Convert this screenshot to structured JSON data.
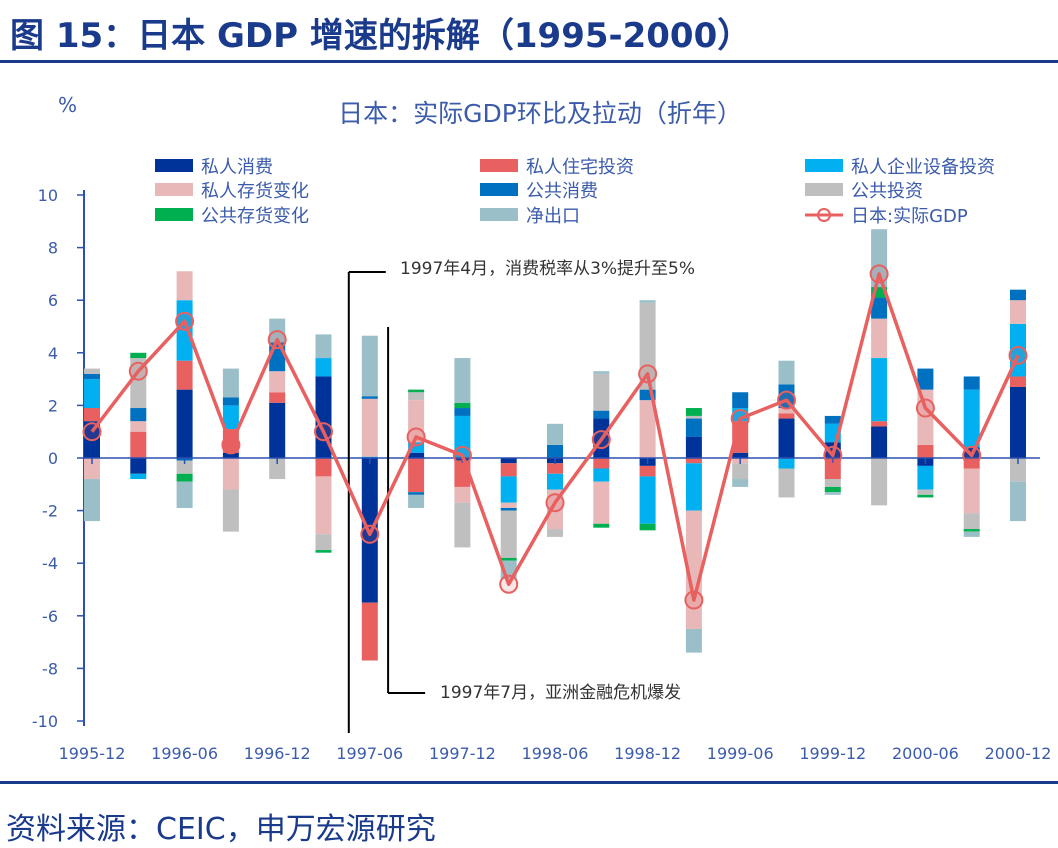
{
  "header": {
    "title": "图 15：日本 GDP 增速的拆解（1995-2000）"
  },
  "footer": {
    "source": "资料来源：CEIC，申万宏源研究"
  },
  "chart_data": {
    "type": "bar",
    "stacked": true,
    "title": "日本：实际GDP环比及拉动（折年）",
    "ylabel": "%",
    "ylim": [
      -10,
      10
    ],
    "yticks": [
      10,
      8,
      6,
      4,
      2,
      0,
      -2,
      -4,
      -6,
      -8,
      -10
    ],
    "xtick_labels": [
      "1995-12",
      "1996-06",
      "1996-12",
      "1997-06",
      "1997-12",
      "1998-06",
      "1998-12",
      "1999-06",
      "1999-12",
      "2000-06",
      "2000-12"
    ],
    "categories": [
      "1995-12",
      "1996-03",
      "1996-06",
      "1996-09",
      "1996-12",
      "1997-03",
      "1997-06",
      "1997-09",
      "1997-12",
      "1998-03",
      "1998-06",
      "1998-09",
      "1998-12",
      "1999-03",
      "1999-06",
      "1999-09",
      "1999-12",
      "2000-03",
      "2000-06",
      "2000-09",
      "2000-12"
    ],
    "legend_position": "top",
    "grid": false,
    "series": [
      {
        "name": "私人消费",
        "color": "#003399",
        "values": [
          1.4,
          -0.6,
          2.6,
          0.2,
          2.1,
          3.1,
          -5.5,
          0.2,
          -0.1,
          -0.2,
          -0.2,
          1.5,
          -0.3,
          0.8,
          0.2,
          1.5,
          0.6,
          1.2,
          -0.3,
          0.4,
          2.7
        ]
      },
      {
        "name": "私人住宅投资",
        "color": "#E86060",
        "values": [
          0.5,
          1.0,
          1.1,
          0.9,
          0.4,
          -0.7,
          -2.2,
          -1.3,
          -1.0,
          -0.5,
          -0.4,
          -0.4,
          -0.4,
          -0.2,
          1.2,
          0.2,
          -0.8,
          0.2,
          0.5,
          -0.4,
          0.4
        ]
      },
      {
        "name": "私人企业设备投资",
        "color": "#00B0F0",
        "values": [
          1.1,
          -0.2,
          2.3,
          0.9,
          0,
          0.7,
          0.05,
          0.4,
          1.6,
          -1.0,
          -0.6,
          -0.5,
          -1.8,
          -1.8,
          0.5,
          -0.4,
          0.7,
          2.4,
          -0.9,
          2.2,
          2.0
        ]
      },
      {
        "name": "私人存货变化",
        "color": "#E8B8B8",
        "values": [
          -0.8,
          0.4,
          1.1,
          -1.2,
          0.8,
          -2.2,
          2.2,
          1.6,
          -0.6,
          -0.2,
          -1.5,
          -1.6,
          2.2,
          -4.5,
          -0.2,
          0.2,
          0,
          1.5,
          2.1,
          -1.7,
          0.9
        ]
      },
      {
        "name": "公共消费",
        "color": "#0070C0",
        "values": [
          0.2,
          0.5,
          -0.1,
          0.3,
          1.1,
          0,
          0.1,
          -0.1,
          0.3,
          -0.1,
          0.5,
          0.3,
          0.4,
          0.7,
          0.6,
          0.9,
          0.3,
          0.8,
          0.8,
          0.5,
          0.4
        ]
      },
      {
        "name": "公共投资",
        "color": "#BFBFBF",
        "values": [
          0.2,
          1.9,
          -0.5,
          -1.6,
          -0.8,
          -0.6,
          0,
          0.3,
          -1.7,
          -1.8,
          -0.3,
          1.4,
          3.3,
          0.1,
          -0.6,
          -1.1,
          -0.3,
          -1.8,
          -0.2,
          -0.6,
          -0.9
        ]
      },
      {
        "name": "公共存货变化",
        "color": "#00B050",
        "values": [
          0,
          0.2,
          -0.3,
          0,
          0,
          -0.1,
          0,
          0.1,
          0.2,
          -0.1,
          0,
          -0.15,
          -0.25,
          0.3,
          0,
          0,
          -0.2,
          0.4,
          -0.1,
          -0.1,
          0
        ]
      },
      {
        "name": "净出口",
        "color": "#9BBFC8",
        "values": [
          -1.6,
          0,
          -1.0,
          1.1,
          0.9,
          0.9,
          2.3,
          -0.5,
          1.7,
          -0.7,
          0.8,
          0.1,
          0.1,
          -0.9,
          -0.3,
          0.9,
          -0.1,
          2.2,
          0,
          -0.2,
          -1.5
        ]
      }
    ],
    "line": {
      "name": "日本:实际GDP",
      "color": "#E86060",
      "values": [
        1.0,
        3.3,
        5.2,
        0.5,
        4.5,
        1.0,
        -2.9,
        0.8,
        0.1,
        -4.8,
        -1.7,
        0.7,
        3.2,
        -5.4,
        1.5,
        2.2,
        0.1,
        7.0,
        1.9,
        0.1,
        3.9
      ]
    },
    "annotations": [
      {
        "text": "1997年4月，消费税率从3%提升至5%",
        "category": "1997-06"
      },
      {
        "text": "1997年7月，亚洲金融危机爆发",
        "category": "1997-09"
      }
    ]
  }
}
